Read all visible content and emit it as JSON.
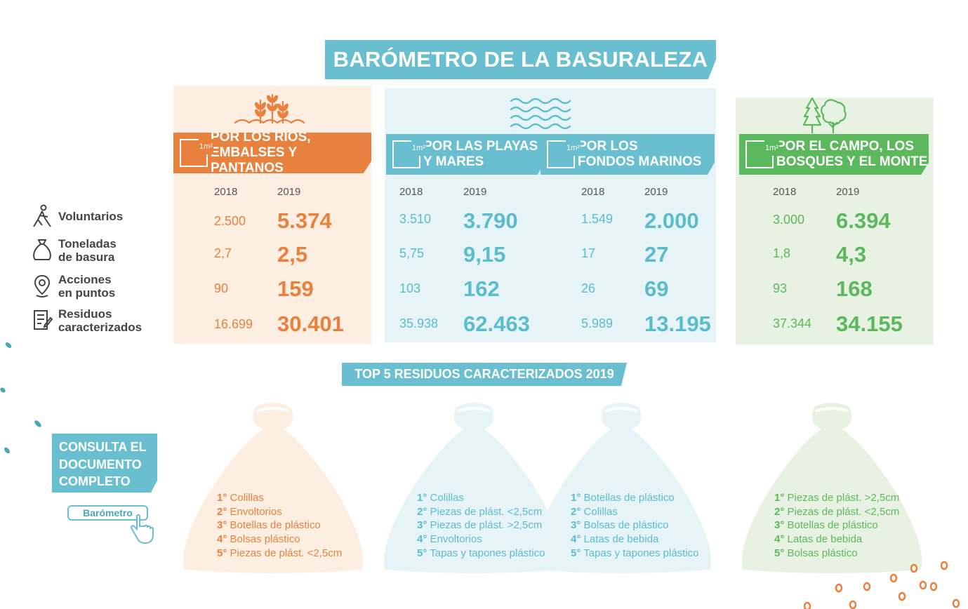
{
  "title": "BARÓMETRO DE LA BASURALEZA",
  "metrics": [
    {
      "label_1": "Voluntarios",
      "label_2": ""
    },
    {
      "label_1": "Toneladas",
      "label_2": "de basura"
    },
    {
      "label_1": "Acciones",
      "label_2": "en puntos"
    },
    {
      "label_1": "Residuos",
      "label_2": "caracterizados"
    }
  ],
  "sections": {
    "rios": {
      "header_1": "POR LOS RÍOS,",
      "header_2": "EMBALSES Y PANTANOS",
      "unit": "1m²",
      "year_a": "2018",
      "year_b": "2019",
      "rows": [
        [
          "2.500",
          "5.374"
        ],
        [
          "2,7",
          "2,5"
        ],
        [
          "90",
          "159"
        ],
        [
          "16.699",
          "30.401"
        ]
      ],
      "top5": [
        "Colillas",
        "Envoltorios",
        "Botellas de plástico",
        "Bolsas plástico",
        "Piezas de plást. <2,5cm"
      ]
    },
    "playas": {
      "header_1": "POR LAS PLAYAS",
      "header_2": "Y MARES",
      "unit": "1m²",
      "year_a": "2018",
      "year_b": "2019",
      "rows": [
        [
          "3.510",
          "3.790"
        ],
        [
          "5,75",
          "9,15"
        ],
        [
          "103",
          "162"
        ],
        [
          "35.938",
          "62.463"
        ]
      ],
      "top5": [
        "Colillas",
        "Piezas de plást. <2,5cm",
        "Piezas de plást. >2,5cm",
        "Envoltorios",
        "Tapas y tapones plástico"
      ]
    },
    "fondos": {
      "header_1": "POR LOS",
      "header_2": "FONDOS MARINOS",
      "unit": "1m²",
      "year_a": "2018",
      "year_b": "2019",
      "rows": [
        [
          "1.549",
          "2.000"
        ],
        [
          "17",
          "27"
        ],
        [
          "26",
          "69"
        ],
        [
          "5.989",
          "13.195"
        ]
      ],
      "top5": [
        "Botellas de plástico",
        "Colillas",
        "Bolsas de plástico",
        "Latas de bebida",
        "Tapas y tapones plástico"
      ]
    },
    "campo": {
      "header_1": "POR EL CAMPO, LOS",
      "header_2": "BOSQUES Y EL MONTE",
      "unit": "1m²",
      "year_a": "2018",
      "year_b": "2019",
      "rows": [
        [
          "3.000",
          "6.394"
        ],
        [
          "1,8",
          "4,3"
        ],
        [
          "93",
          "168"
        ],
        [
          "37.344",
          "34.155"
        ]
      ],
      "top5": [
        "Piezas de plást. >2,5cm",
        "Piezas de plást. <2,5cm",
        "Botellas de plástico",
        "Latas de bebida",
        "Bolsas plástico"
      ]
    }
  },
  "ranks": [
    "1°",
    "2°",
    "3°",
    "4°",
    "5°"
  ],
  "top5_title": "TOP 5 RESIDUOS CARACTERIZADOS 2019",
  "consulta": {
    "line_1": "CONSULTA EL",
    "line_2": "DOCUMENTO",
    "line_3": "COMPLETO",
    "button": "Barómetro"
  },
  "colors": {
    "orange": "#e8813e",
    "blue": "#69bfcf",
    "green": "#5cb85c"
  }
}
